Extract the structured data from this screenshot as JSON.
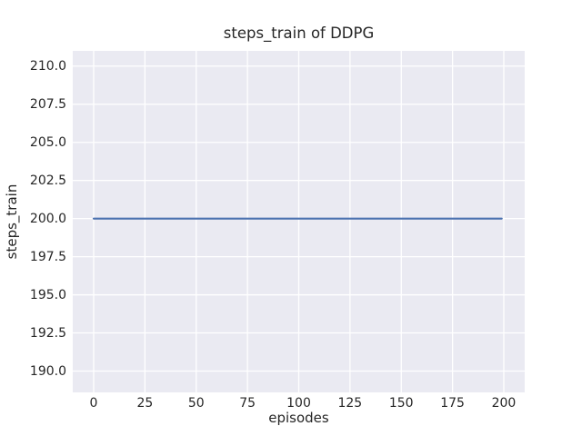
{
  "chart_data": {
    "type": "line",
    "title": "steps_train of DDPG",
    "xlabel": "episodes",
    "ylabel": "steps_train",
    "x_ticks": [
      0,
      25,
      50,
      75,
      100,
      125,
      150,
      175,
      200
    ],
    "x_tick_labels": [
      "0",
      "25",
      "50",
      "75",
      "100",
      "125",
      "150",
      "175",
      "200"
    ],
    "y_ticks": [
      190.0,
      192.5,
      195.0,
      197.5,
      200.0,
      202.5,
      205.0,
      207.5,
      210.0
    ],
    "y_tick_labels": [
      "190.0",
      "192.5",
      "195.0",
      "197.5",
      "200.0",
      "202.5",
      "205.0",
      "207.5",
      "210.0"
    ],
    "xlim": [
      -10.2,
      210.2
    ],
    "ylim": [
      188.6,
      211.0
    ],
    "grid": true,
    "legend_position": "none",
    "style": {
      "plot_bg": "#eaeaf2",
      "grid_color": "#ffffff",
      "text_color": "#262626",
      "line_color": "#4c72b0"
    },
    "series": [
      {
        "name": "steps_train",
        "color": "#4c72b0",
        "x": [
          0,
          199
        ],
        "y": [
          200,
          200
        ]
      }
    ]
  }
}
